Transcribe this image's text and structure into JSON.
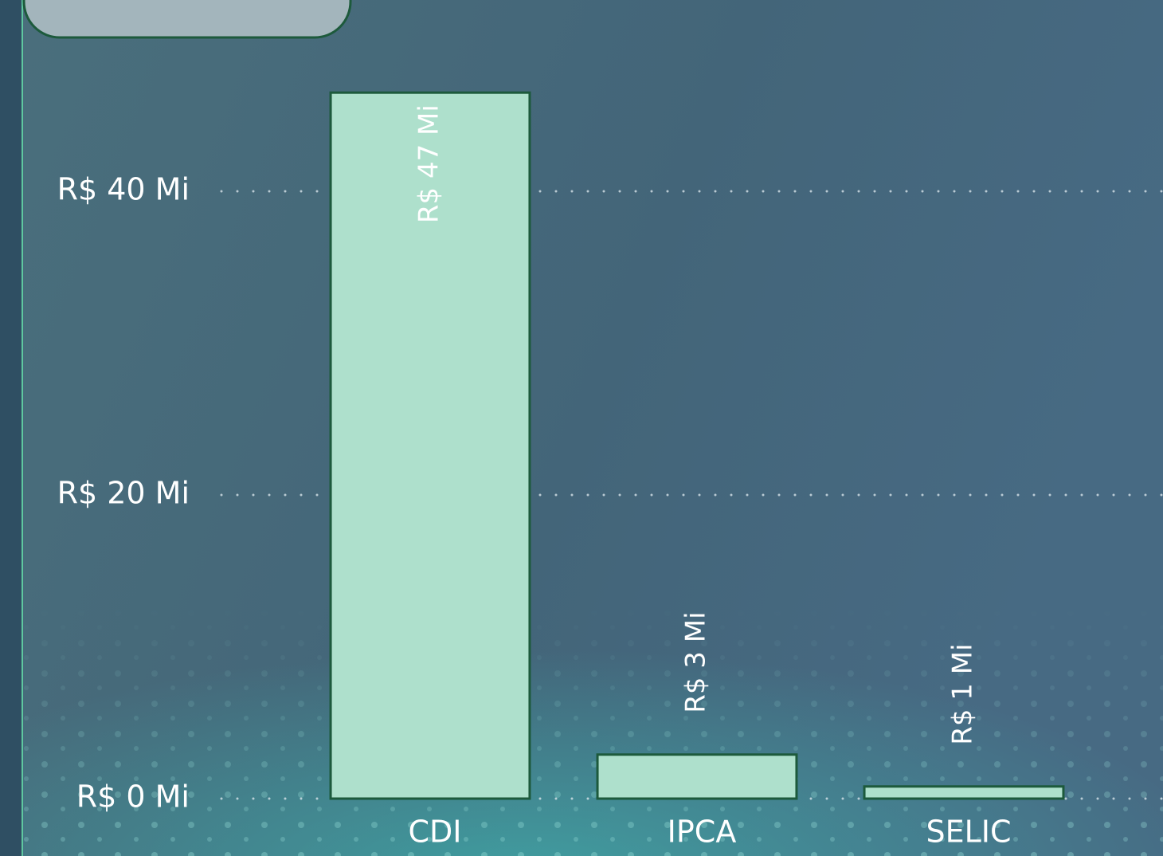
{
  "chart_data": {
    "type": "bar",
    "categories": [
      "CDI",
      "IPCA",
      "SELIC"
    ],
    "values": [
      46.5,
      2.9,
      0.8
    ],
    "value_labels": [
      "R$ 47 Mi",
      "R$ 3 Mi",
      "R$ 1 Mi"
    ],
    "color": "#aee0cc",
    "edge_color": "#1d5a3c",
    "ylim": [
      0,
      52.6
    ],
    "yticks": [
      {
        "value": 0,
        "label": "R$ 0 Mi"
      },
      {
        "value": 20,
        "label": "R$ 20 Mi"
      },
      {
        "value": 40,
        "label": "R$ 40 Mi"
      }
    ],
    "grid": true
  }
}
